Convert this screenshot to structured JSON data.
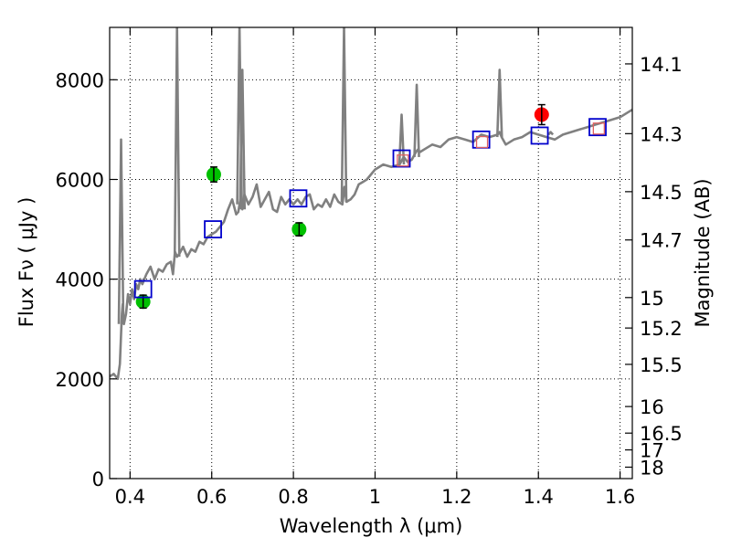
{
  "chart_data": {
    "type": "line",
    "title": "",
    "xlabel": "Wavelength  λ (μm)",
    "ylabel": "Flux  Fν  ( μJy )",
    "y2label": "Magnitude (AB)",
    "xlim": [
      0.35,
      1.63
    ],
    "ylim": [
      0,
      9050
    ],
    "grid": true,
    "x_ticks": [
      0.4,
      0.6,
      0.8,
      1.0,
      1.2,
      1.4,
      1.6
    ],
    "x_tick_labels": [
      "0.4",
      "0.6",
      "0.8",
      "1",
      "1.2",
      "1.4",
      "1.6"
    ],
    "y_ticks": [
      0,
      2000,
      4000,
      6000,
      8000
    ],
    "y_tick_labels": [
      "0",
      "2000",
      "4000",
      "6000",
      "8000"
    ],
    "y2_ticks": [
      14.1,
      14.3,
      14.5,
      14.7,
      15,
      15.2,
      15.5,
      16,
      16.5,
      17,
      18
    ],
    "y2_tick_labels": [
      "14.1",
      "14.3",
      "14.5",
      "14.7",
      "15",
      "15.2",
      "15.5",
      "16",
      "16.5",
      "17",
      "18"
    ],
    "colors": {
      "spectrum": "#808080",
      "green_points": "#00c000",
      "red_points": "#ff0000",
      "model_squares": "#0000cc",
      "model_red_squares": "#e06060"
    },
    "series": [
      {
        "kind": "line",
        "x": [
          0.35,
          0.36,
          0.37,
          0.375,
          0.378,
          0.38,
          0.382,
          0.385,
          0.39,
          0.395,
          0.4,
          0.405,
          0.41,
          0.415,
          0.42,
          0.425,
          0.43,
          0.44,
          0.45,
          0.46,
          0.47,
          0.48,
          0.49,
          0.5,
          0.505,
          0.51,
          0.515,
          0.52,
          0.53,
          0.54,
          0.55,
          0.56,
          0.57,
          0.58,
          0.59,
          0.6,
          0.61,
          0.62,
          0.63,
          0.64,
          0.65,
          0.655,
          0.66,
          0.665,
          0.67,
          0.675,
          0.68,
          0.69,
          0.7,
          0.71,
          0.72,
          0.73,
          0.74,
          0.75,
          0.76,
          0.77,
          0.78,
          0.79,
          0.8,
          0.81,
          0.82,
          0.83,
          0.84,
          0.85,
          0.86,
          0.87,
          0.88,
          0.89,
          0.9,
          0.91,
          0.92,
          0.925,
          0.93,
          0.94,
          0.95,
          0.96,
          0.97,
          0.98,
          0.99,
          1.0,
          1.02,
          1.04,
          1.06,
          1.07,
          1.08,
          1.09,
          1.1,
          1.105,
          1.11,
          1.12,
          1.14,
          1.16,
          1.18,
          1.2,
          1.22,
          1.24,
          1.26,
          1.28,
          1.3,
          1.305,
          1.31,
          1.32,
          1.34,
          1.36,
          1.38,
          1.4,
          1.42,
          1.44,
          1.46,
          1.48,
          1.5,
          1.52,
          1.54,
          1.56,
          1.58,
          1.6,
          1.62,
          1.63
        ],
        "y": [
          2050,
          2100,
          2000,
          2300,
          2900,
          3300,
          3500,
          3100,
          3300,
          3700,
          3500,
          3800,
          3600,
          3900,
          3800,
          4000,
          3900,
          4100,
          4250,
          4000,
          4200,
          4150,
          4300,
          4350,
          4100,
          4550,
          4450,
          4500,
          4650,
          4450,
          4600,
          4550,
          4750,
          4700,
          4850,
          4900,
          4950,
          5050,
          5150,
          5400,
          5600,
          5450,
          5300,
          5350,
          5600,
          5400,
          5700,
          5500,
          5650,
          5900,
          5450,
          5600,
          5750,
          5400,
          5350,
          5650,
          5500,
          5600,
          5500,
          5600,
          5500,
          5650,
          5700,
          5400,
          5500,
          5450,
          5600,
          5450,
          5700,
          5550,
          5500,
          5850,
          5550,
          5600,
          5700,
          5900,
          5950,
          6000,
          6100,
          6200,
          6300,
          6250,
          6300,
          6450,
          6350,
          6400,
          6550,
          6600,
          6550,
          6600,
          6700,
          6650,
          6800,
          6850,
          6800,
          6750,
          6900,
          6850,
          6900,
          6950,
          6850,
          6700,
          6800,
          6850,
          6950,
          6900,
          6850,
          6800,
          6900,
          6950,
          7000,
          7050,
          7100,
          7150,
          7200,
          7250,
          7350,
          7400
        ]
      },
      {
        "kind": "spike",
        "x": [
          0.378,
          0.515,
          0.668,
          0.675,
          0.924,
          1.065,
          1.102,
          1.305,
          1.43
        ],
        "y": [
          6800,
          9050,
          9050,
          8200,
          9050,
          7300,
          7900,
          8200,
          6950
        ],
        "base": [
          3100,
          4450,
          5500,
          5400,
          5550,
          6300,
          6450,
          6850,
          6900
        ]
      },
      {
        "kind": "scatter",
        "marker": "circle",
        "color": "green",
        "x": [
          0.432,
          0.605,
          0.814
        ],
        "y": [
          3550,
          6100,
          5000
        ],
        "err": [
          130,
          150,
          130
        ]
      },
      {
        "kind": "scatter",
        "marker": "circle",
        "color": "red",
        "x": [
          1.408
        ],
        "y": [
          7300
        ],
        "err": [
          200
        ]
      },
      {
        "kind": "scatter",
        "marker": "open-square",
        "color": "blue",
        "x": [
          0.432,
          0.603,
          0.812,
          1.065,
          1.26,
          1.403,
          1.545
        ],
        "y": [
          3800,
          5000,
          5620,
          6420,
          6800,
          6880,
          7050
        ]
      },
      {
        "kind": "scatter",
        "marker": "open-square-small",
        "color": "red",
        "x": [
          1.068,
          1.262,
          1.548
        ],
        "y": [
          6380,
          6750,
          7020
        ]
      }
    ]
  }
}
